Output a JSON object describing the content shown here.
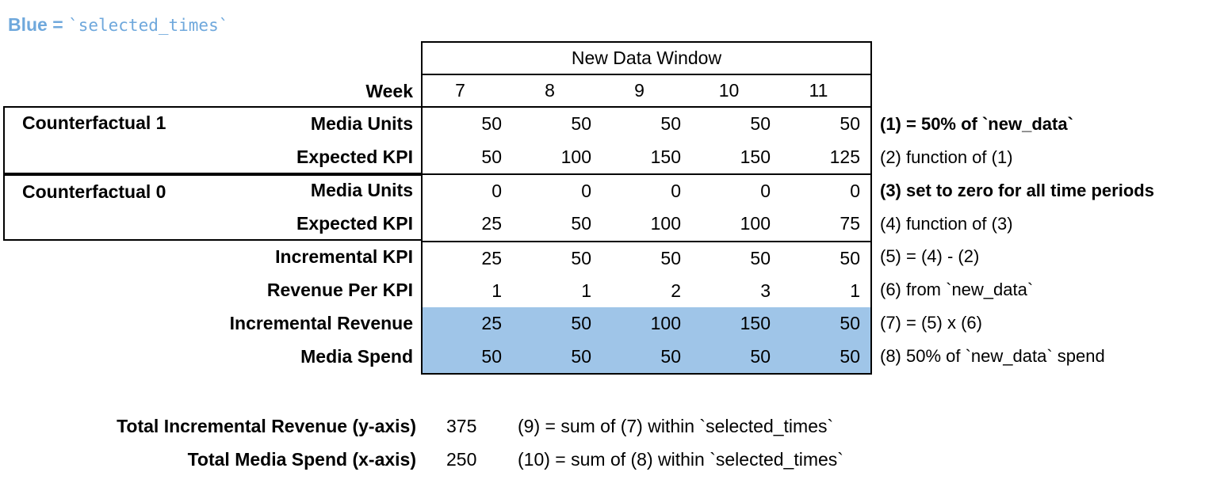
{
  "legend": {
    "text": "Blue = ",
    "code": "`selected_times`"
  },
  "colors": {
    "highlight": "#9FC5E8",
    "legend": "#6FA8DC"
  },
  "chart_data": {
    "type": "table",
    "title": "New Data Window",
    "row_header": "Week",
    "columns": [
      7,
      8,
      9,
      10,
      11
    ],
    "row_groups": [
      {
        "label": "Counterfactual 1",
        "rows": [
          0,
          1
        ]
      },
      {
        "label": "Counterfactual 0",
        "rows": [
          2,
          3
        ]
      }
    ],
    "series": [
      {
        "name": "Media Units",
        "values": [
          50,
          50,
          50,
          50,
          50
        ],
        "annotation": "(1) = 50% of `new_data`",
        "bold_annotation": true,
        "highlighted": false
      },
      {
        "name": "Expected KPI",
        "values": [
          50,
          100,
          150,
          150,
          125
        ],
        "annotation": "(2) function of (1)",
        "bold_annotation": false,
        "highlighted": false
      },
      {
        "name": "Media Units",
        "values": [
          0,
          0,
          0,
          0,
          0
        ],
        "annotation": "(3) set to zero for all time periods",
        "bold_annotation": true,
        "highlighted": false
      },
      {
        "name": "Expected KPI",
        "values": [
          25,
          50,
          100,
          100,
          75
        ],
        "annotation": "(4) function of (3)",
        "bold_annotation": false,
        "highlighted": false
      },
      {
        "name": "Incremental KPI",
        "values": [
          25,
          50,
          50,
          50,
          50
        ],
        "annotation": "(5) = (4) - (2)",
        "bold_annotation": false,
        "highlighted": false
      },
      {
        "name": "Revenue Per KPI",
        "values": [
          1,
          1,
          2,
          3,
          1
        ],
        "annotation": "(6) from `new_data`",
        "bold_annotation": false,
        "highlighted": false
      },
      {
        "name": "Incremental Revenue",
        "values": [
          25,
          50,
          100,
          150,
          50
        ],
        "annotation": "(7) = (5) x (6)",
        "bold_annotation": false,
        "highlighted": true
      },
      {
        "name": "Media Spend",
        "values": [
          50,
          50,
          50,
          50,
          50
        ],
        "annotation": "(8) 50% of `new_data` spend",
        "bold_annotation": false,
        "highlighted": true
      }
    ],
    "totals": [
      {
        "label": "Total Incremental Revenue (y-axis)",
        "value": 375,
        "annotation": "(9) = sum of (7) within `selected_times`"
      },
      {
        "label": "Total Media Spend (x-axis)",
        "value": 250,
        "annotation": "(10) = sum of (8) within `selected_times`"
      }
    ]
  }
}
